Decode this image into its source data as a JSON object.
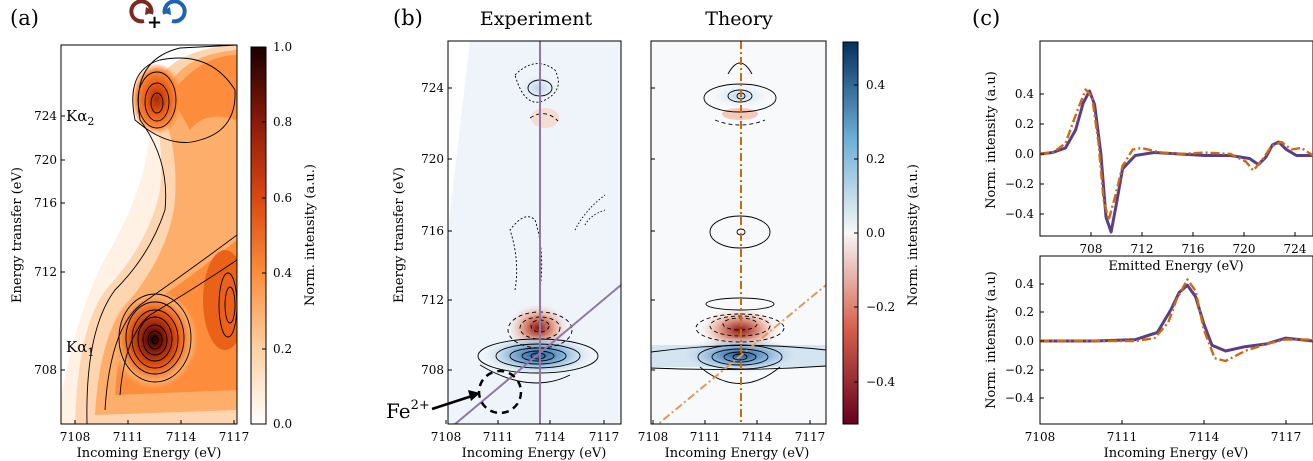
{
  "panels": {
    "a": {
      "label": "(a)",
      "xlabel": "Incoming Energy (eV)",
      "ylabel": "Energy transfer (eV)",
      "xticks": [
        "7108",
        "7111",
        "7114",
        "7117"
      ],
      "yticks": [
        "708",
        "712",
        "716",
        "720",
        "724"
      ],
      "peak_labels": {
        "ka2": "Kα",
        "ka2_sub": "2",
        "ka1": "Kα",
        "ka1_sub": "1"
      },
      "colorbar": {
        "label": "Norm. intensity (a.u.)",
        "ticks": [
          "0.0",
          "0.2",
          "0.4",
          "0.6",
          "0.8",
          "1.0"
        ]
      },
      "polarization_icons": [
        "counterclockwise-arrow-icon",
        "clockwise-arrow-icon"
      ],
      "plus": "+",
      "icon_colors": {
        "left": "#7a2a22",
        "right": "#1f63b3"
      }
    },
    "b": {
      "label": "(b)",
      "titles": [
        "Experiment",
        "Theory"
      ],
      "xlabel": "Incoming Energy (eV)",
      "ylabel": "Energy transfer (eV)",
      "xticks": [
        "7108",
        "7111",
        "7114",
        "7117"
      ],
      "yticks": [
        "708",
        "712",
        "716",
        "720",
        "724"
      ],
      "annotation": {
        "text": "Fe",
        "sup": "2+"
      },
      "colorbar": {
        "label": "Norm. intensity (a.u.)",
        "ticks": [
          "0.4",
          "0.2",
          "0.0",
          "−0.2",
          "−0.4"
        ]
      }
    },
    "c": {
      "label": "(c)",
      "top": {
        "xlabel": "Emitted Energy (eV)",
        "ylabel": "Norm. intensity (a.u)",
        "xticks": [
          "708",
          "712",
          "716",
          "720",
          "724"
        ],
        "yticks": [
          "0.4",
          "0.2",
          "0.0",
          "−0.2",
          "−0.4"
        ]
      },
      "bottom": {
        "xlabel": "Incoming Energy (eV)",
        "ylabel": "Norm. intensity (a.u)",
        "xticks": [
          "7108",
          "7111",
          "7114",
          "7117"
        ],
        "yticks": [
          "0.4",
          "0.2",
          "0.0",
          "−0.2",
          "−0.4"
        ]
      }
    }
  },
  "colors": {
    "experiment": "#5b3f86",
    "theory": "#cc6a12",
    "cut_line": "#8f78a8"
  },
  "chart_data": [
    {
      "type": "heatmap",
      "panel": "a",
      "xlabel": "Incoming Energy (eV)",
      "ylabel": "Energy transfer (eV)",
      "xlim": [
        7108,
        7118
      ],
      "ylim": [
        705,
        726.5
      ],
      "zlabel": "Norm. intensity (a.u.)",
      "zlim": [
        0.0,
        1.0
      ],
      "peaks": [
        {
          "name": "Kα1",
          "x": 7113.3,
          "y": 709.9,
          "z": 1.0
        },
        {
          "name": "Kα2",
          "x": 7113.4,
          "y": 723.4,
          "z": 0.55
        }
      ],
      "contours": true
    },
    {
      "type": "heatmap",
      "panel": "b-experiment",
      "title": "Experiment",
      "xlabel": "Incoming Energy (eV)",
      "ylabel": "Energy transfer (eV)",
      "xlim": [
        7108,
        7118
      ],
      "ylim": [
        705,
        726.5
      ],
      "zlabel": "Norm. intensity (a.u.)",
      "zlim": [
        -0.5,
        0.5
      ],
      "cuts": {
        "vertical_x": 7113.5,
        "diagonal": true
      },
      "annotation": "Fe2+"
    },
    {
      "type": "heatmap",
      "panel": "b-theory",
      "title": "Theory",
      "xlabel": "Incoming Energy (eV)",
      "ylabel": "Energy transfer (eV)",
      "xlim": [
        7108,
        7118
      ],
      "ylim": [
        705,
        726.5
      ],
      "zlabel": "Norm. intensity (a.u.)",
      "zlim": [
        -0.5,
        0.5
      ],
      "cuts": {
        "vertical_x": 7113.5,
        "diagonal": true
      }
    },
    {
      "type": "line",
      "panel": "c-top",
      "xlabel": "Emitted Energy (eV)",
      "ylabel": "Norm. intensity (a.u)",
      "xlim": [
        705,
        726.5
      ],
      "ylim": [
        -0.55,
        0.55
      ],
      "series": [
        {
          "style": "solid",
          "x": [
            705,
            706,
            707,
            707.8,
            708.4,
            708.9,
            709.3,
            709.8,
            710.2,
            710.6,
            711.0,
            711.5,
            712.5,
            714,
            716,
            718,
            720,
            721.5,
            722.2,
            722.8,
            723.3,
            723.8,
            724.4,
            725.2,
            726.5
          ],
          "y": [
            0.0,
            0.01,
            0.04,
            0.16,
            0.34,
            0.42,
            0.33,
            0.0,
            -0.42,
            -0.52,
            -0.34,
            -0.1,
            -0.01,
            0.01,
            0.0,
            -0.01,
            -0.01,
            -0.03,
            -0.07,
            -0.02,
            0.06,
            0.08,
            0.03,
            -0.01,
            -0.01
          ]
        },
        {
          "style": "dashdot",
          "x": [
            705,
            706,
            707,
            707.9,
            708.6,
            709.1,
            709.6,
            710.0,
            710.4,
            710.9,
            711.5,
            712.3,
            713.0,
            714.5,
            716,
            718,
            720,
            721.2,
            721.8,
            722.5,
            723.2,
            724.0,
            724.8,
            725.6,
            726.5
          ],
          "y": [
            0.0,
            0.01,
            0.07,
            0.28,
            0.43,
            0.38,
            0.08,
            -0.3,
            -0.44,
            -0.29,
            -0.08,
            0.03,
            0.04,
            0.01,
            0.0,
            0.01,
            0.0,
            -0.05,
            -0.11,
            -0.04,
            0.05,
            0.08,
            0.03,
            0.04,
            -0.01
          ]
        }
      ]
    },
    {
      "type": "line",
      "panel": "c-bottom",
      "xlabel": "Incoming Energy (eV)",
      "ylabel": "Norm. intensity (a.u)",
      "xlim": [
        7108,
        7118
      ],
      "ylim": [
        -0.55,
        0.55
      ],
      "series": [
        {
          "style": "solid",
          "x": [
            7108,
            7110,
            7111.5,
            7112.3,
            7112.8,
            7113.1,
            7113.4,
            7113.7,
            7114.0,
            7114.3,
            7114.8,
            7115.5,
            7116.3,
            7117,
            7118
          ],
          "y": [
            0.0,
            0.0,
            0.01,
            0.06,
            0.22,
            0.34,
            0.39,
            0.31,
            0.12,
            -0.03,
            -0.07,
            -0.04,
            -0.02,
            0.02,
            0.0
          ]
        },
        {
          "style": "dashdot",
          "x": [
            7108,
            7110,
            7111.5,
            7112.2,
            7112.7,
            7113.0,
            7113.4,
            7113.7,
            7114.0,
            7114.4,
            7114.8,
            7115.5,
            7116.3,
            7117,
            7118
          ],
          "y": [
            0.0,
            0.0,
            0.0,
            0.02,
            0.13,
            0.29,
            0.43,
            0.35,
            0.08,
            -0.12,
            -0.14,
            -0.07,
            -0.02,
            0.01,
            0.01
          ]
        }
      ]
    }
  ]
}
